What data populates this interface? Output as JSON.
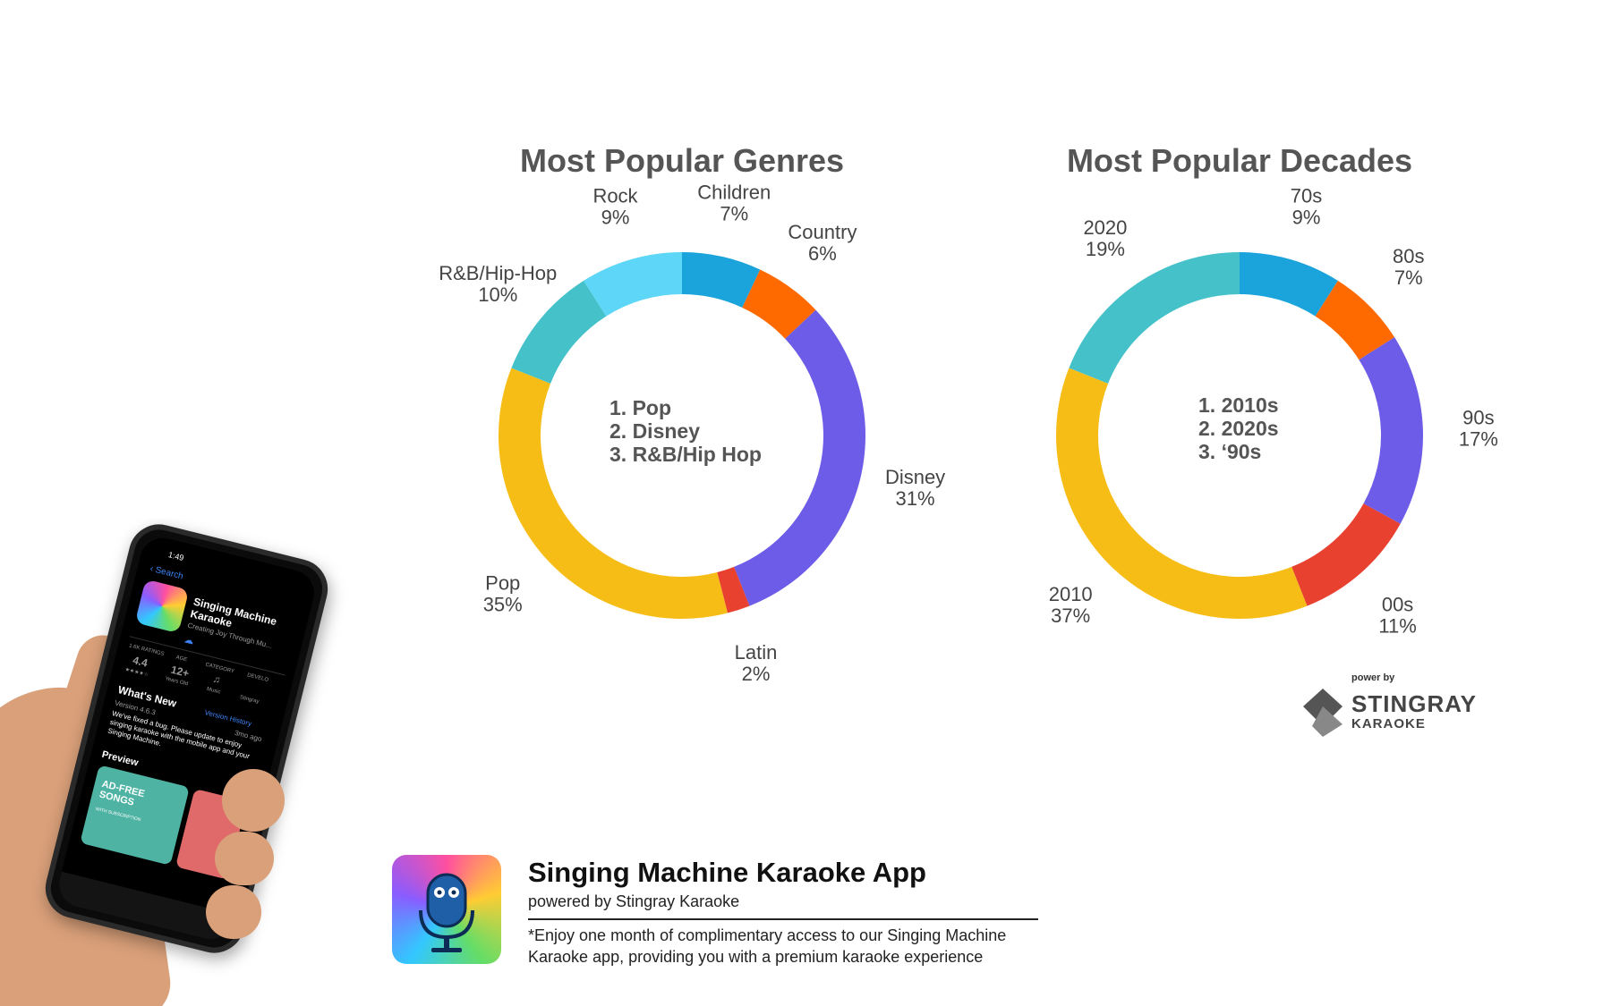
{
  "colors": {
    "children": "#1ba3dc",
    "country": "#ff6a00",
    "disney": "#6c5ce7",
    "latin": "#e8412f",
    "pop": "#f7bd17",
    "rnb": "#45c1c9",
    "rock": "#5ed6f7"
  },
  "chart_data": [
    {
      "type": "pie",
      "title": "Most Popular Genres",
      "labels": [
        "Children",
        "Country",
        "Disney",
        "Latin",
        "Pop",
        "R&B/Hip-Hop",
        "Rock"
      ],
      "values": [
        7,
        6,
        31,
        2,
        35,
        10,
        9
      ],
      "value_labels": [
        "7%",
        "6%",
        "31%",
        "2%",
        "35%",
        "10%",
        "9%"
      ],
      "colors": [
        "#1ba3dc",
        "#ff6a00",
        "#6c5ce7",
        "#e8412f",
        "#f7bd17",
        "#45c1c9",
        "#5ed6f7"
      ],
      "center_text": [
        "1. Pop",
        "2. Disney",
        "3. R&B/Hip Hop"
      ]
    },
    {
      "type": "pie",
      "title": "Most Popular Decades",
      "labels": [
        "70s",
        "80s",
        "90s",
        "00s",
        "2010",
        "2020"
      ],
      "values": [
        9,
        7,
        17,
        11,
        37,
        19
      ],
      "value_labels": [
        "9%",
        "7%",
        "17%",
        "11%",
        "37%",
        "19%"
      ],
      "colors": [
        "#1ba3dc",
        "#ff6a00",
        "#6c5ce7",
        "#e8412f",
        "#f7bd17",
        "#45c1c9"
      ],
      "center_text": [
        "1. 2010s",
        "2. 2020s",
        "3. ‘90s"
      ]
    }
  ],
  "phone": {
    "time": "1:49",
    "back": "Search",
    "app_title_1": "Singing Machine",
    "app_title_2": "Karaoke",
    "subtitle": "Creating Joy Through Mu...",
    "ratings_label": "1.6K RATINGS",
    "rating": "4.4",
    "stars": "★★★★☆",
    "age_label": "AGE",
    "age": "12+",
    "age_sub": "Years Old",
    "category_label": "CATEGORY",
    "category": "Music",
    "developer_label": "DEVELO",
    "developer": "Stingray",
    "whats_new": "What's New",
    "version_history": "Version History",
    "version": "Version 4.6.3",
    "ago": "3mo ago",
    "notes": "We've fixed a bug. Please update to enjoy singing karaoke with the mobile app and your Singing Machine.",
    "more": "more",
    "preview": "Preview",
    "promo": "AD-FREE SONGS",
    "promo_sub": "WITH SUBSCRIPTION"
  },
  "app": {
    "name": "Singing Machine Karaoke App",
    "powered_by": "powered by Stingray Karaoke",
    "note": "*Enjoy one month of complimentary access to our Singing Machine Karaoke app, providing you with a premium karaoke experience"
  },
  "logo": {
    "power_by": "power by",
    "brand": "STINGRAY",
    "sub": "KARAOKE"
  }
}
